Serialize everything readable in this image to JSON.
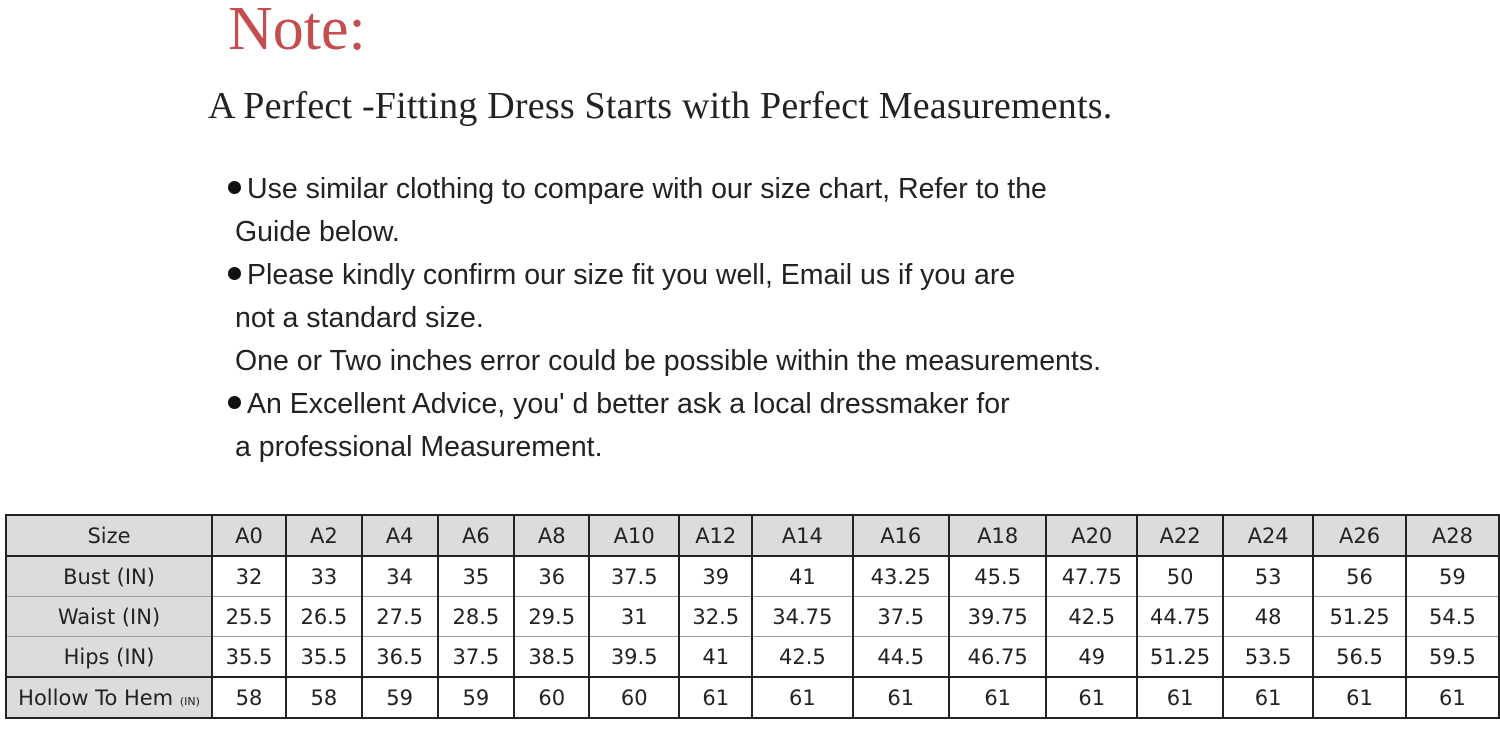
{
  "title": "Note:",
  "subtitle": "A Perfect -Fitting Dress Starts with Perfect Measurements.",
  "notes": [
    {
      "bullet": true,
      "text": "Use similar clothing to compare with our size chart, Refer to the"
    },
    {
      "bullet": false,
      "text": "Guide below."
    },
    {
      "bullet": true,
      "text": "Please kindly confirm our size fit you well, Email us if you are"
    },
    {
      "bullet": false,
      "text": "not a standard size."
    },
    {
      "bullet": false,
      "text": "One or Two inches error could be possible within the measurements."
    },
    {
      "bullet": true,
      "text": "An Excellent Advice, you' d better ask a local dressmaker for"
    },
    {
      "bullet": false,
      "text": "a professional Measurement."
    }
  ],
  "size_table": {
    "header_label": "Size",
    "sizes": [
      "A0",
      "A2",
      "A4",
      "A6",
      "A8",
      "A10",
      "A12",
      "A14",
      "A16",
      "A18",
      "A20",
      "A22",
      "A24",
      "A26",
      "A28"
    ],
    "rows": [
      {
        "label": "Bust (IN)",
        "unit": "",
        "values": [
          "32",
          "33",
          "34",
          "35",
          "36",
          "37.5",
          "39",
          "41",
          "43.25",
          "45.5",
          "47.75",
          "50",
          "53",
          "56",
          "59"
        ]
      },
      {
        "label": "Waist (IN)",
        "unit": "",
        "values": [
          "25.5",
          "26.5",
          "27.5",
          "28.5",
          "29.5",
          "31",
          "32.5",
          "34.75",
          "37.5",
          "39.75",
          "42.5",
          "44.75",
          "48",
          "51.25",
          "54.5"
        ]
      },
      {
        "label": "Hips (IN)",
        "unit": "",
        "values": [
          "35.5",
          "35.5",
          "36.5",
          "37.5",
          "38.5",
          "39.5",
          "41",
          "42.5",
          "44.5",
          "46.75",
          "49",
          "51.25",
          "53.5",
          "56.5",
          "59.5"
        ]
      },
      {
        "label": "Hollow To Hem",
        "unit": "(IN)",
        "values": [
          "58",
          "58",
          "59",
          "59",
          "60",
          "60",
          "61",
          "61",
          "61",
          "61",
          "61",
          "61",
          "61",
          "61",
          "61"
        ]
      }
    ],
    "colors": {
      "header_bg": "#dcdcdc",
      "title_red": "#c44d4f"
    }
  }
}
